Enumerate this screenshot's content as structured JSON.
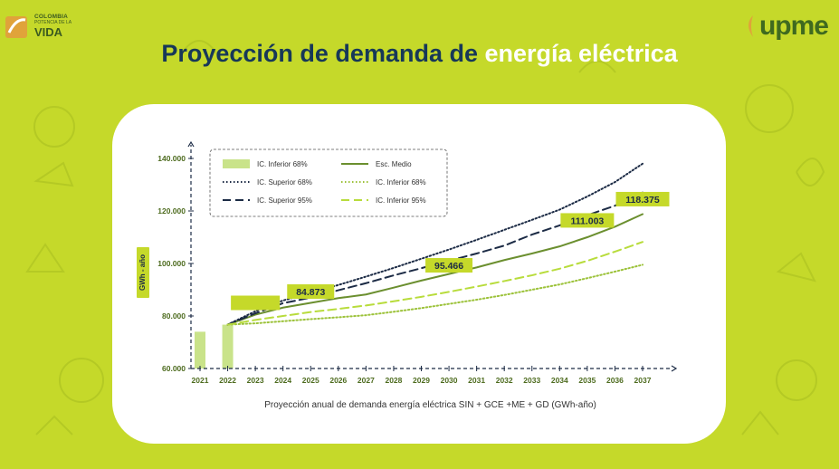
{
  "header": {
    "title_main": "Proyección de demanda de ",
    "title_highlight": "energía eléctrica",
    "logo_left": {
      "line1": "COLOMBIA",
      "line2": "POTENCIA DE LA",
      "line3": "VIDA"
    },
    "logo_right": {
      "text": "upme"
    }
  },
  "colors": {
    "background": "#c5d92a",
    "title": "#173858",
    "dark_green": "#6b8f2f",
    "light_green": "#b8dc3c",
    "navy": "#1c2b45",
    "label_box": "#c5d92a"
  },
  "chart_data": {
    "type": "line",
    "caption": "Proyección anual de demanda energía eléctrica SIN + GCE +ME + GD (GWh-año)",
    "ylabel": "GWh - año",
    "ylim": [
      60000,
      140000
    ],
    "y_ticks": [
      "60.000",
      "80.000",
      "100.000",
      "120.000",
      "140.000"
    ],
    "y_tick_values": [
      60000,
      80000,
      100000,
      120000,
      140000
    ],
    "categories": [
      "2021",
      "2022",
      "2023",
      "2024",
      "2025",
      "2026",
      "2027",
      "2028",
      "2029",
      "2030",
      "2031",
      "2032",
      "2033",
      "2034",
      "2035",
      "2036",
      "2037"
    ],
    "bars": {
      "name": "IC. Inferior 68%",
      "values": [
        74000,
        76700
      ]
    },
    "series": [
      {
        "name": "Esc. Medio",
        "style": "solid",
        "color": "#6b8f2f",
        "values": [
          null,
          76700,
          80500,
          83200,
          85000,
          86800,
          88200,
          90800,
          93500,
          96000,
          98500,
          101300,
          103800,
          106500,
          110000,
          114000,
          118800
        ]
      },
      {
        "name": "IC. Superior 68%",
        "style": "dotted",
        "color": "#1c2b45",
        "values": [
          null,
          76700,
          81800,
          85900,
          88800,
          91800,
          95000,
          98300,
          101800,
          105300,
          109000,
          112800,
          116600,
          120500,
          125500,
          131000,
          138000
        ]
      },
      {
        "name": "IC. Superior 95%",
        "style": "dashed",
        "color": "#1c2b45",
        "values": [
          null,
          76700,
          81000,
          84873,
          87000,
          89800,
          92500,
          95466,
          98200,
          101000,
          103800,
          106800,
          111003,
          114500,
          118375,
          122000,
          127000
        ]
      },
      {
        "name": "IC. Inferior 68%",
        "style": "dotted",
        "color": "#9cc23a",
        "values": [
          null,
          76700,
          77200,
          78000,
          78800,
          79500,
          80300,
          81600,
          83000,
          84600,
          86200,
          88000,
          90000,
          92000,
          94400,
          96900,
          99500
        ]
      },
      {
        "name": "IC. Inferior 95%",
        "style": "dashed",
        "color": "#b8dc3c",
        "values": [
          null,
          76700,
          78500,
          80000,
          81500,
          82700,
          84000,
          85600,
          87300,
          89200,
          91200,
          93300,
          95500,
          98000,
          101000,
          104500,
          108200
        ]
      }
    ],
    "annotations": [
      {
        "text": "",
        "x": "2023",
        "y": 85000
      },
      {
        "text": "84.873",
        "x": "2025",
        "y": 89300
      },
      {
        "text": "95.466",
        "x": "2030",
        "y": 99300
      },
      {
        "text": "111.003",
        "x": "2035",
        "y": 116400
      },
      {
        "text": "118.375",
        "x": "2037",
        "y": 124500
      }
    ],
    "legend": {
      "placement": "top-left",
      "items": [
        {
          "label": "IC. Inferior 68%",
          "style": "bar",
          "color": "#c9e38a"
        },
        {
          "label": "Esc. Medio",
          "style": "solid",
          "color": "#6b8f2f"
        },
        {
          "label": "IC. Superior 68%",
          "style": "dotted",
          "color": "#1c2b45"
        },
        {
          "label": "IC. Inferior 68%",
          "style": "dotted",
          "color": "#9cc23a"
        },
        {
          "label": "IC. Superior 95%",
          "style": "dashed",
          "color": "#1c2b45"
        },
        {
          "label": "IC. Inferior 95%",
          "style": "dashed",
          "color": "#b8dc3c"
        }
      ]
    },
    "grid": false
  }
}
